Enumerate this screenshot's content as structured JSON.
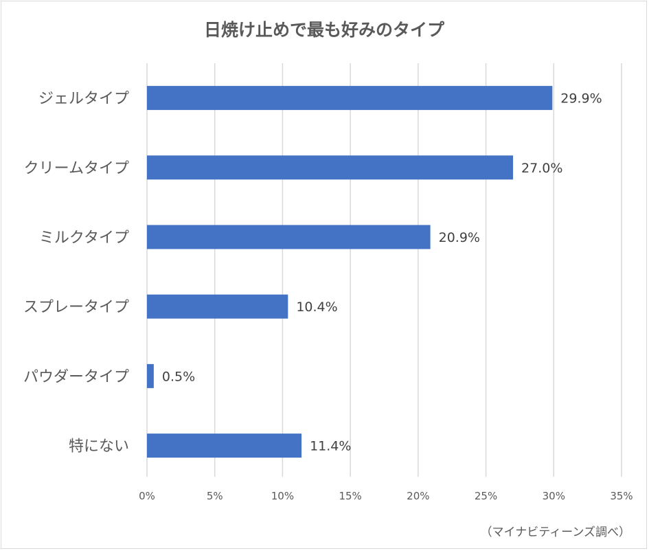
{
  "chart_data": {
    "type": "bar",
    "orientation": "horizontal",
    "title": "日焼け止めで最も好みのタイプ",
    "categories": [
      "ジェルタイプ",
      "クリームタイプ",
      "ミルクタイプ",
      "スプレータイプ",
      "パウダータイプ",
      "特にない"
    ],
    "values": [
      29.9,
      27.0,
      20.9,
      10.4,
      0.5,
      11.4
    ],
    "data_labels": [
      "29.9%",
      "27.0%",
      "20.9%",
      "10.4%",
      "0.5%",
      "11.4%"
    ],
    "xlim": [
      0,
      35
    ],
    "xticks": [
      0,
      5,
      10,
      15,
      20,
      25,
      30,
      35
    ],
    "xtick_labels": [
      "0%",
      "5%",
      "10%",
      "15%",
      "20%",
      "25%",
      "30%",
      "35%"
    ],
    "xlabel": "",
    "ylabel": "",
    "grid": true,
    "legend": "none",
    "bar_color": "#4472c4",
    "grid_color": "#d9d9d9",
    "source_note": "（マイナビティーンズ調べ）"
  }
}
